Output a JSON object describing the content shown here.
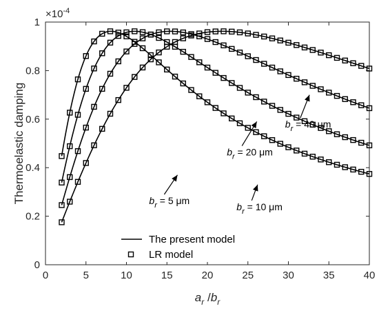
{
  "chart_data": {
    "type": "line",
    "title": "",
    "xlabel": "a_r / b_r",
    "ylabel": "Thermoelastic damping",
    "y_exponent_label": "×10",
    "y_exponent": "-4",
    "xlim": [
      0,
      40
    ],
    "ylim": [
      0,
      1
    ],
    "x_ticks": [
      0,
      5,
      10,
      15,
      20,
      25,
      30,
      35,
      40
    ],
    "y_ticks": [
      0,
      0.2,
      0.4,
      0.6,
      0.8,
      1
    ],
    "x_tick_labels": [
      "0",
      "5",
      "10",
      "15",
      "20",
      "25",
      "30",
      "35",
      "40"
    ],
    "y_tick_labels": [
      "0",
      "0.2",
      "0.4",
      "0.6",
      "0.8",
      "1"
    ],
    "grid": false,
    "legend": {
      "placement": "bottom-left",
      "entries": [
        {
          "label": "The present model",
          "style": "line"
        },
        {
          "label": "LR model",
          "style": "square-marker"
        }
      ]
    },
    "series": [
      {
        "name": "b_r = 5 μm",
        "peak_x": 8.1,
        "peak_y": 0.962
      },
      {
        "name": "b_r = 10 μm",
        "peak_x": 11.0,
        "peak_y": 0.962
      },
      {
        "name": "b_r = 20 μm",
        "peak_x": 15.4,
        "peak_y": 0.962
      },
      {
        "name": "b_r = 40 μm",
        "peak_x": 21.8,
        "peak_y": 0.962
      }
    ],
    "marker_x": [
      2,
      3,
      4,
      5,
      6,
      7,
      8,
      9,
      10,
      11,
      12,
      13,
      14,
      15,
      16,
      17,
      18,
      19,
      20,
      21,
      22,
      23,
      24,
      25,
      26,
      27,
      28,
      29,
      30,
      31,
      32,
      33,
      34,
      35,
      36,
      37,
      38,
      39,
      40
    ],
    "annotations": [
      {
        "var": "b",
        "sub": "r",
        "rest": " = 5 μm",
        "x": 12.8,
        "y": 0.25,
        "arrow_to": [
          16.3,
          0.37
        ]
      },
      {
        "var": "b",
        "sub": "r",
        "rest": " = 10 μm",
        "x": 23.6,
        "y": 0.225,
        "arrow_to": [
          26.2,
          0.33
        ]
      },
      {
        "var": "b",
        "sub": "r",
        "rest": " = 20 μm",
        "x": 22.4,
        "y": 0.45,
        "arrow_to": [
          26.1,
          0.59
        ]
      },
      {
        "var": "b",
        "sub": "r",
        "rest": " = 40 μm",
        "x": 29.6,
        "y": 0.565,
        "arrow_to": [
          32.6,
          0.7
        ]
      }
    ]
  }
}
